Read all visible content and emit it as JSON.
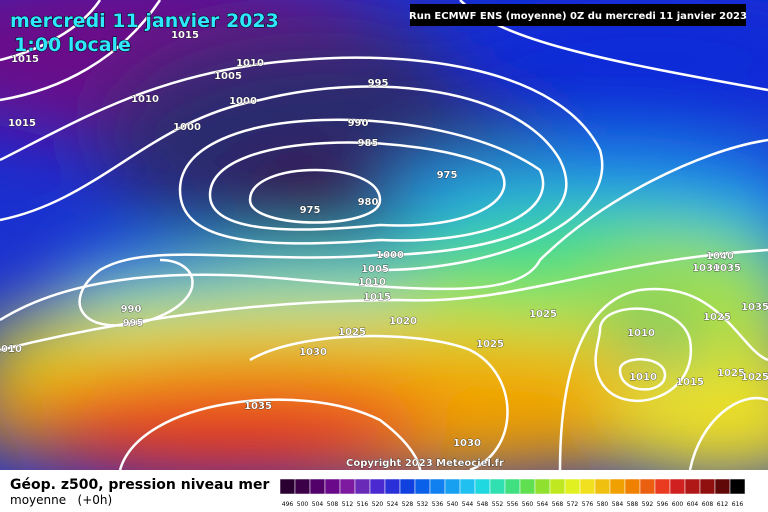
{
  "header": {
    "title": "mercredi 11 janvier 2023",
    "subtitle": "1:00 locale",
    "run": "Run ECMWF ENS (moyenne) 0Z du mercredi 11 janvier 2023"
  },
  "map": {
    "isobar_labels": [
      "1015",
      "1015",
      "1010",
      "1005",
      "1010",
      "1000",
      "995",
      "1015",
      "1000",
      "990",
      "985",
      "975",
      "975",
      "980",
      "1000",
      "1005",
      "1010",
      "1015",
      "990",
      "995",
      "1025",
      "1020",
      "1025",
      "1025",
      "1010",
      "1010",
      "1015",
      "1030",
      "1035",
      "1030",
      "1010",
      "1040",
      "1030",
      "1035",
      "1025",
      "1035",
      "1025",
      "1025"
    ],
    "copyright": "Copyright 2023 Meteociel.fr"
  },
  "legend": {
    "title": "Géop. z500, pression niveau mer",
    "subtitle": "moyenne   (+0h)",
    "ticks": [
      "496",
      "500",
      "504",
      "508",
      "512",
      "516",
      "520",
      "524",
      "528",
      "532",
      "536",
      "540",
      "544",
      "548",
      "552",
      "556",
      "560",
      "564",
      "568",
      "572",
      "576",
      "580",
      "584",
      "588",
      "592",
      "596",
      "600",
      "604",
      "608",
      "612",
      "616"
    ]
  }
}
